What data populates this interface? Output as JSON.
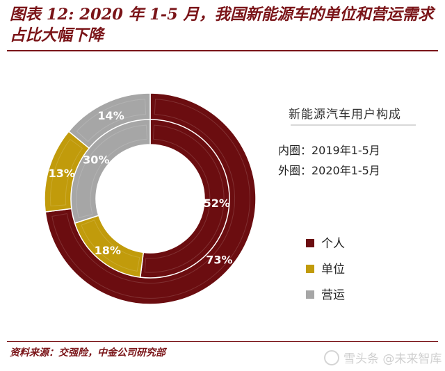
{
  "figure": {
    "title": "图表 12: 2020 年 1-5 月，我国新能源车的单位和营运需求占比大幅下降",
    "source": "资料来源：交强险，中金公司研究部",
    "watermark": "雪头条 @未来智库"
  },
  "chart_data": {
    "type": "donut",
    "title": "新能源汽车用户构成",
    "categories": [
      "个人",
      "单位",
      "营运"
    ],
    "colors": [
      "#6b0d10",
      "#c19b0b",
      "#a6a6a6"
    ],
    "rings": [
      {
        "name": "内圈：2019年1-5月",
        "ring": "inner",
        "values": [
          52,
          18,
          30
        ],
        "labels": [
          "52%",
          "18%",
          "30%"
        ]
      },
      {
        "name": "外圈：2020年1-5月",
        "ring": "outer",
        "values": [
          73,
          13,
          14
        ],
        "labels": [
          "73%",
          "13%",
          "14%"
        ]
      }
    ],
    "legend": {
      "position": "right",
      "entries": [
        "个人",
        "单位",
        "营运"
      ]
    },
    "annotation_lines": [
      "内圈：2019年1-5月",
      "外圈：2020年1-5月"
    ]
  }
}
